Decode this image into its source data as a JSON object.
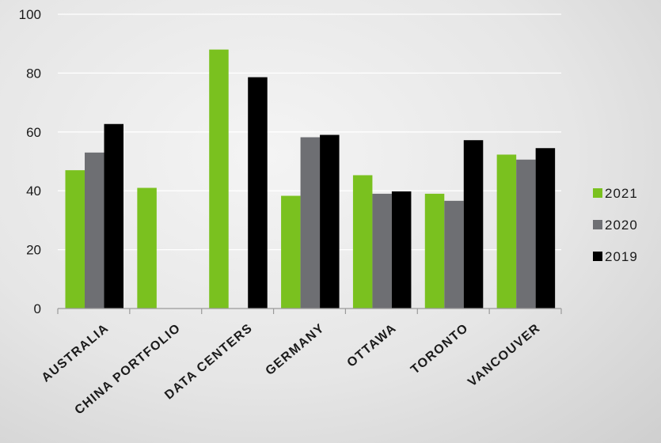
{
  "chart_data": {
    "type": "bar",
    "categories": [
      "AUSTRALIA",
      "CHINA PORTFOLIO",
      "DATA CENTERS",
      "GERMANY",
      "OTTAWA",
      "TORONTO",
      "VANCOUVER"
    ],
    "series": [
      {
        "name": "2021",
        "color": "#7ac11f",
        "values": [
          47,
          41,
          88,
          38.3,
          45.3,
          39,
          52.3
        ]
      },
      {
        "name": "2020",
        "color": "#6e6f73",
        "values": [
          53,
          null,
          null,
          58.2,
          39,
          36.6,
          50.6
        ]
      },
      {
        "name": "2019",
        "color": "#000000",
        "values": [
          62.7,
          null,
          78.6,
          59,
          39.8,
          57.2,
          54.5
        ]
      }
    ],
    "yticks": [
      "0",
      "20",
      "40",
      "60",
      "80",
      "100"
    ],
    "ylim": [
      0,
      100
    ],
    "grid": true,
    "legend_position": "right"
  }
}
